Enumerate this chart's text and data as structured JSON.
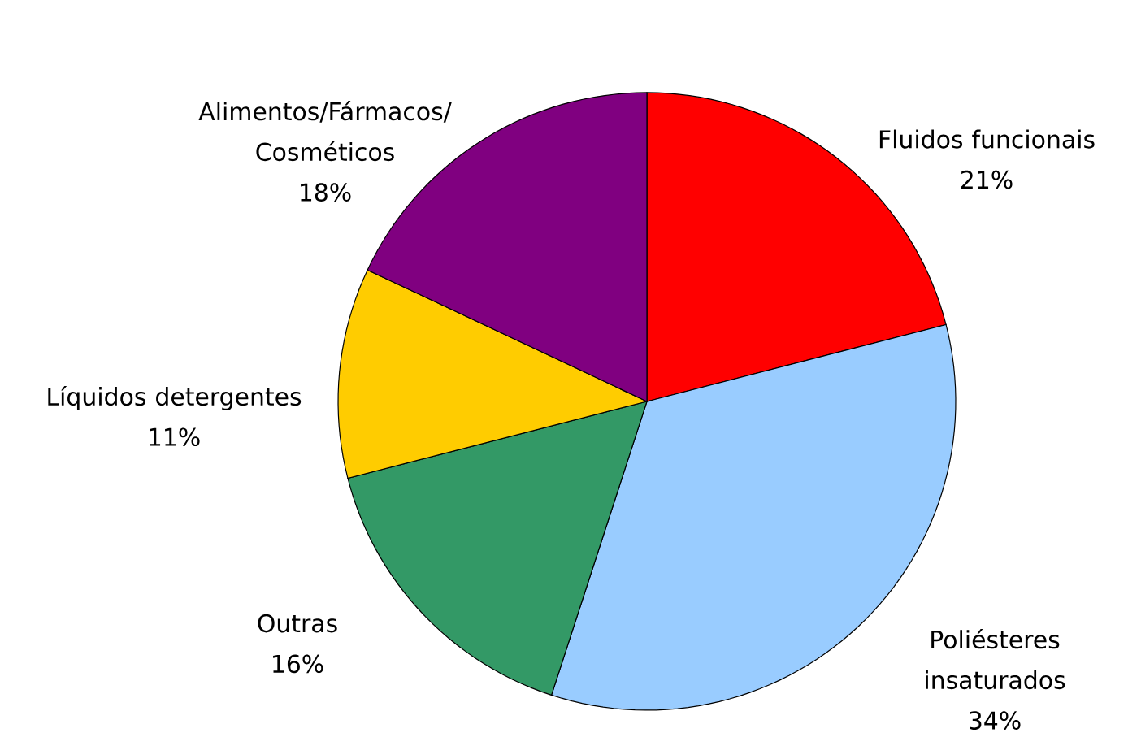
{
  "chart_data": {
    "type": "pie",
    "categories": [
      "Fluidos funcionais",
      "Poliésteres insaturados",
      "Outras",
      "Líquidos detergentes",
      "Alimentos/Fármacos/ Cosméticos"
    ],
    "values": [
      21,
      34,
      16,
      11,
      18
    ],
    "value_labels": [
      "21%",
      "34%",
      "16%",
      "11%",
      "18%"
    ],
    "colors": [
      "#ff0000",
      "#99ccff",
      "#339966",
      "#ffcc00",
      "#800080"
    ]
  }
}
